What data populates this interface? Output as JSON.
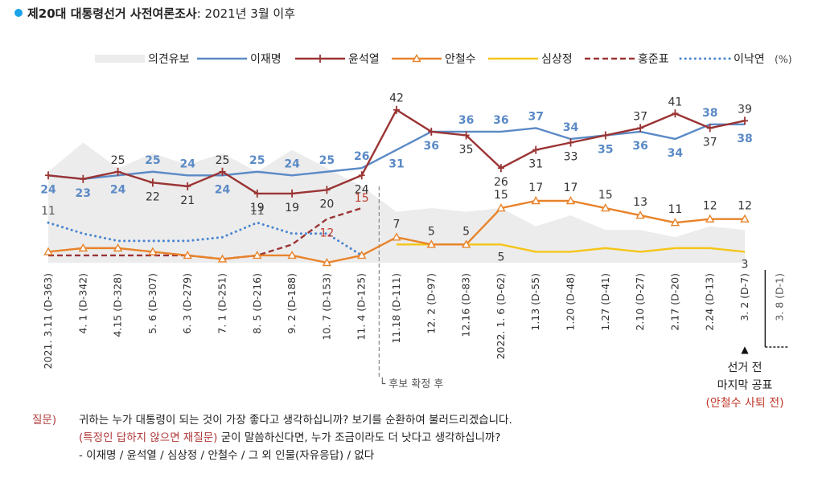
{
  "title": {
    "main": "제20대 대통령선거 사전여론조사",
    "sub": ": 2021년 3월 이후"
  },
  "legend": {
    "undecided": "의견유보",
    "lee_jm": "이재명",
    "yoon": "윤석열",
    "ahn": "안철수",
    "sim": "심상정",
    "hong": "홍준표",
    "lee_ny": "이낙연",
    "unit": "(%)"
  },
  "annotations": {
    "candidate_confirmed": "└ 후보 확정 후",
    "final_line1": "선거 전",
    "final_line2": "마지막 공표",
    "final_note": "(안철수 사퇴 전)",
    "final_marker": "▲"
  },
  "question": {
    "label": "질문)",
    "line1": "귀하는 누가 대통령이 되는 것이 가장 좋다고 생각하십니까? 보기를 순환하여 불러드리겠습니다.",
    "line2_red": "(특정인 답하지 않으면 재질문)",
    "line2_rest": " 굳이 말씀하신다면, 누가 조금이라도 더 낫다고 생각하십니까?",
    "line3": "- 이재명 / 윤석열 / 심상정 / 안철수 / 그 외 인물(자유응답) / 없다"
  },
  "colors": {
    "lee_jm": "#5b8ac6",
    "yoon": "#9b3434",
    "ahn": "#e8832a",
    "sim": "#f5c518",
    "hong": "#9b3434",
    "lee_ny": "#4a86d0",
    "undecided": "#ececec",
    "final_note": "#c0392b",
    "title_dot": "#1aa3e8"
  },
  "chart_data": {
    "type": "line",
    "title": "제20대 대통령선거 사전여론조사: 2021년 3월 이후",
    "x": [
      "2021. 3.11 (D-363)",
      "4. 1 (D-342)",
      "4.15 (D-328)",
      "5. 6 (D-307)",
      "6. 3 (D-279)",
      "7. 1 (D-251)",
      "8. 5 (D-216)",
      "9. 2 (D-188)",
      "10. 7 (D-153)",
      "11. 4 (D-125)",
      "11.18 (D-111)",
      "12. 2 (D-97)",
      "12.16 (D-83)",
      "2022. 1. 6 (D-62)",
      "1.13 (D-55)",
      "1.20 (D-48)",
      "1.27 (D-41)",
      "2.10 (D-27)",
      "2.17 (D-20)",
      "2.24 (D-13)",
      "3. 2 (D-7)",
      "3. 8 (D-1)"
    ],
    "unit": "(%)",
    "series": [
      {
        "name": "이재명",
        "values": [
          24,
          23,
          24,
          25,
          24,
          24,
          25,
          24,
          25,
          26,
          31,
          36,
          36,
          36,
          37,
          34,
          35,
          36,
          34,
          38,
          38,
          null
        ]
      },
      {
        "name": "윤석열",
        "values": [
          24,
          23,
          25,
          22,
          21,
          25,
          19,
          19,
          20,
          24,
          42,
          36,
          35,
          26,
          31,
          33,
          35,
          37,
          41,
          37,
          39,
          null
        ]
      },
      {
        "name": "안철수",
        "values": [
          3,
          4,
          4,
          3,
          2,
          1,
          2,
          2,
          0,
          2,
          7,
          5,
          5,
          15,
          17,
          17,
          15,
          13,
          11,
          12,
          12,
          null
        ]
      },
      {
        "name": "심상정",
        "values": [
          null,
          null,
          null,
          null,
          null,
          null,
          null,
          null,
          null,
          null,
          5,
          5,
          5,
          5,
          3,
          3,
          4,
          3,
          4,
          4,
          3,
          null
        ]
      },
      {
        "name": "홍준표",
        "values": [
          2,
          2,
          2,
          2,
          2,
          1,
          2,
          5,
          12,
          15,
          null,
          null,
          null,
          null,
          null,
          null,
          null,
          null,
          null,
          null,
          null,
          null
        ]
      },
      {
        "name": "이낙연",
        "values": [
          11,
          8,
          6,
          6,
          6,
          7,
          11,
          8,
          8,
          2,
          null,
          null,
          null,
          null,
          null,
          null,
          null,
          null,
          null,
          null,
          null,
          null
        ]
      },
      {
        "name": "의견유보",
        "values": [
          25,
          33,
          26,
          30,
          27,
          30,
          25,
          31,
          26,
          21,
          14,
          15,
          14,
          15,
          10,
          13,
          9,
          9,
          7,
          10,
          9,
          null
        ]
      }
    ],
    "labels": {
      "이재명": [
        24,
        23,
        24,
        25,
        24,
        24,
        25,
        24,
        25,
        26,
        31,
        36,
        36,
        36,
        37,
        34,
        35,
        36,
        34,
        38,
        38
      ],
      "윤석열": [
        null,
        null,
        25,
        22,
        21,
        25,
        19,
        19,
        20,
        24,
        42,
        null,
        35,
        26,
        31,
        33,
        null,
        37,
        41,
        37,
        39
      ],
      "안철수": [
        null,
        null,
        null,
        null,
        null,
        null,
        null,
        null,
        null,
        null,
        7,
        5,
        5,
        15,
        17,
        17,
        15,
        13,
        11,
        12,
        12
      ],
      "심상정": [
        null,
        null,
        null,
        null,
        null,
        null,
        null,
        null,
        null,
        null,
        null,
        null,
        null,
        5,
        null,
        null,
        null,
        null,
        null,
        null,
        3
      ],
      "홍준표": [
        null,
        null,
        null,
        null,
        null,
        null,
        null,
        null,
        12,
        15,
        null,
        null,
        null,
        null,
        null,
        null,
        null,
        null,
        null,
        null,
        null
      ],
      "이낙연": [
        11,
        null,
        null,
        null,
        null,
        null,
        11,
        null,
        null,
        null,
        null,
        null,
        null,
        null,
        null,
        null,
        null,
        null,
        null,
        null,
        null
      ]
    }
  }
}
